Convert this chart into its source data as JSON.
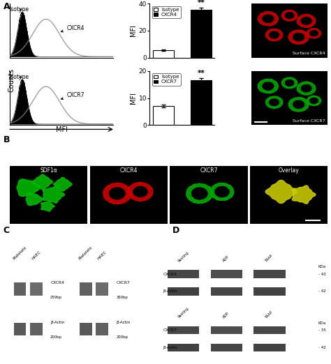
{
  "panel_labels": [
    "A",
    "B",
    "C",
    "D"
  ],
  "bar_CXCR4": {
    "isotype_val": 5.5,
    "receptor_val": 35.5,
    "isotype_err": 0.4,
    "receptor_err": 1.5,
    "ylim": [
      0,
      40
    ],
    "yticks": [
      0,
      20,
      40
    ],
    "ylabel": "MFI",
    "sig": "**",
    "legend": [
      "Isotype",
      "CXCR4"
    ]
  },
  "bar_CXCR7": {
    "isotype_val": 7.0,
    "receptor_val": 16.5,
    "isotype_err": 0.5,
    "receptor_err": 1.0,
    "ylim": [
      0,
      20
    ],
    "yticks": [
      0,
      10,
      20
    ],
    "ylabel": "MFI",
    "sig": "**",
    "legend": [
      "Isotype",
      "CXCR7"
    ]
  },
  "flow_top_labels": [
    "Isotype",
    "CXCR4"
  ],
  "flow_bottom_labels": [
    "Isotype",
    "CXCR7"
  ],
  "flow_xlabel": "MFI",
  "flow_ylabel": "Counts",
  "micro_top_label": "Surface CXCR4",
  "micro_bot_label": "Surface CXCR7",
  "micro_top_color": "#cc0000",
  "micro_bot_color": "#00aa00",
  "panelB_labels": [
    "SDF1α",
    "CXCR4",
    "CXCR7",
    "Overlay"
  ],
  "panelB_fg_colors": [
    "#00bb00",
    "#cc0000",
    "#00aa00",
    "#cccc00"
  ],
  "panelC_left_colheaders": [
    "Platelets",
    "HAEC"
  ],
  "panelC_left_bands": [
    [
      "CXCR4",
      "259bp"
    ],
    [
      "β-Actin",
      "200bp"
    ]
  ],
  "panelC_right_colheaders": [
    "Platelets",
    "HAEC"
  ],
  "panelC_right_bands": [
    [
      "CXCR7",
      "360bp"
    ],
    [
      "β-Actin",
      "200bp"
    ]
  ],
  "panelD_top_rows": [
    "CXCR4",
    "β-Actin"
  ],
  "panelD_bot_rows": [
    "CXCR7",
    "β-Actin"
  ],
  "panelD_cols": [
    "Resting",
    "ADP",
    "TRAP"
  ],
  "panelD_top_kda": [
    "- 43",
    "- 42"
  ],
  "panelD_bot_kda": [
    "- 35",
    "- 42"
  ]
}
